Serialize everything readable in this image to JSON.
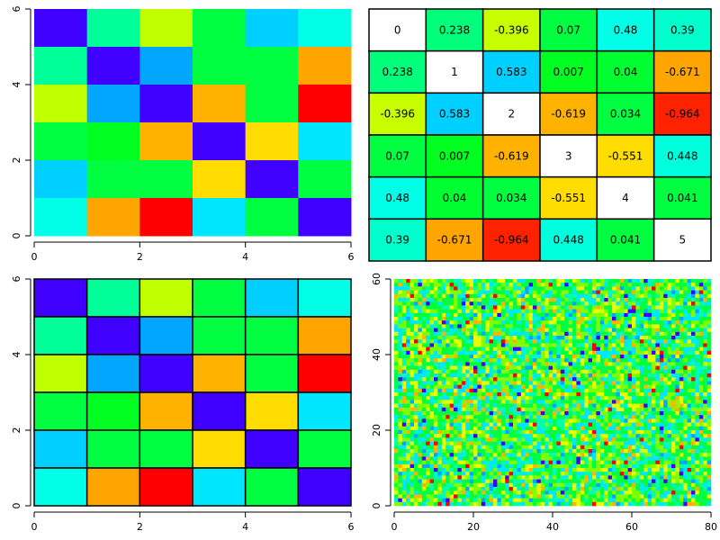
{
  "chart_data": [
    {
      "type": "heatmap",
      "panel": "top-left",
      "xlim": [
        0,
        6
      ],
      "ylim": [
        0,
        6
      ],
      "x_ticks": [
        "0",
        "2",
        "4",
        "6"
      ],
      "y_ticks": [
        "0",
        "2",
        "4",
        "6"
      ],
      "grid_lines": false,
      "colors": [
        [
          "#4000ff",
          "#00ff99",
          "#c0ff00",
          "#00ff40",
          "#00d0ff",
          "#00ffe6"
        ],
        [
          "#00ff99",
          "#4000ff",
          "#00a6ff",
          "#00ff40",
          "#00ff40",
          "#ffa500"
        ],
        [
          "#c0ff00",
          "#00a6ff",
          "#4000ff",
          "#ffb300",
          "#00ff40",
          "#ff0000"
        ],
        [
          "#00ff40",
          "#00ff20",
          "#ffb300",
          "#4000ff",
          "#ffdd00",
          "#00e6ff"
        ],
        [
          "#00d0ff",
          "#00ff40",
          "#00ff40",
          "#ffdd00",
          "#4000ff",
          "#00ff40"
        ],
        [
          "#00ffe6",
          "#ffa500",
          "#ff0000",
          "#00e6ff",
          "#00ff40",
          "#4000ff"
        ]
      ]
    },
    {
      "type": "table",
      "panel": "top-right",
      "cell_text": [
        [
          "0",
          "0.238",
          "-0.396",
          "0.07",
          "0.48",
          "0.39"
        ],
        [
          "0.238",
          "1",
          "0.583",
          "0.007",
          "0.04",
          "-0.671"
        ],
        [
          "-0.396",
          "0.583",
          "2",
          "-0.619",
          "0.034",
          "-0.964"
        ],
        [
          "0.07",
          "0.007",
          "-0.619",
          "3",
          "-0.551",
          "0.448"
        ],
        [
          "0.48",
          "0.04",
          "0.034",
          "-0.551",
          "4",
          "0.041"
        ],
        [
          "0.39",
          "-0.671",
          "-0.964",
          "0.448",
          "0.041",
          "5"
        ]
      ],
      "cell_colors": [
        [
          "#ffffff",
          "#00ff7a",
          "#c8ff00",
          "#00ff40",
          "#00ffe6",
          "#00ffcc"
        ],
        [
          "#00ff7a",
          "#ffffff",
          "#00d0ff",
          "#00ff20",
          "#00ff30",
          "#ffa500"
        ],
        [
          "#c8ff00",
          "#00d0ff",
          "#ffffff",
          "#ffb300",
          "#00ff40",
          "#ff2200"
        ],
        [
          "#00ff40",
          "#00ff20",
          "#ffb300",
          "#ffffff",
          "#ffdd00",
          "#00ffdd"
        ],
        [
          "#00ffe6",
          "#00ff30",
          "#00ff40",
          "#ffdd00",
          "#ffffff",
          "#00ff40"
        ],
        [
          "#00ffcc",
          "#ffa500",
          "#ff2200",
          "#00ffdd",
          "#00ff40",
          "#ffffff"
        ]
      ]
    },
    {
      "type": "heatmap",
      "panel": "bottom-left",
      "xlim": [
        0,
        6
      ],
      "ylim": [
        0,
        6
      ],
      "x_ticks": [
        "0",
        "2",
        "4",
        "6"
      ],
      "y_ticks": [
        "0",
        "2",
        "4",
        "6"
      ],
      "grid_lines": true,
      "colors": [
        [
          "#4000ff",
          "#00ff99",
          "#c0ff00",
          "#00ff40",
          "#00d0ff",
          "#00ffe6"
        ],
        [
          "#00ff99",
          "#4000ff",
          "#00a6ff",
          "#00ff40",
          "#00ff40",
          "#ffa500"
        ],
        [
          "#c0ff00",
          "#00a6ff",
          "#4000ff",
          "#ffb300",
          "#00ff40",
          "#ff0000"
        ],
        [
          "#00ff40",
          "#00ff20",
          "#ffb300",
          "#4000ff",
          "#ffdd00",
          "#00e6ff"
        ],
        [
          "#00d0ff",
          "#00ff40",
          "#00ff40",
          "#ffdd00",
          "#4000ff",
          "#00ff40"
        ],
        [
          "#00ffe6",
          "#ffa500",
          "#ff0000",
          "#00e6ff",
          "#00ff40",
          "#4000ff"
        ]
      ]
    },
    {
      "type": "heatmap",
      "panel": "bottom-right",
      "xlim": [
        0,
        80
      ],
      "ylim": [
        0,
        60
      ],
      "x_ticks": [
        "0",
        "20",
        "40",
        "60",
        "80"
      ],
      "y_ticks": [
        "0",
        "20",
        "40",
        "60"
      ],
      "grid_size": [
        80,
        60
      ],
      "palette": [
        "#4000ff",
        "#00a6ff",
        "#00e6ff",
        "#00ffb0",
        "#00ff40",
        "#80ff00",
        "#e6ff00",
        "#ffb300",
        "#ff0000"
      ],
      "palette_weights": [
        2,
        3,
        14,
        12,
        30,
        20,
        12,
        4,
        2
      ]
    }
  ]
}
